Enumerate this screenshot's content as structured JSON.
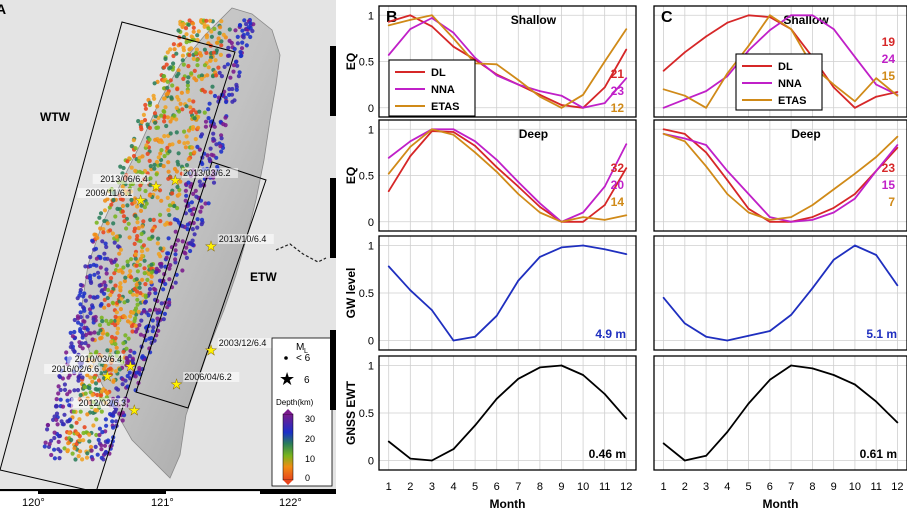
{
  "panel_a": {
    "letter": "A",
    "regions": [
      "WTW",
      "ETW"
    ],
    "lon_ticks": [
      "120°",
      "121°",
      "122°"
    ],
    "events": [
      {
        "label": "2013/06/6.4",
        "lon": 120.92,
        "lat": 23.87
      },
      {
        "label": "2013/03/6.2",
        "lon": 121.07,
        "lat": 23.9
      },
      {
        "label": "2009/11/6.1",
        "lon": 120.8,
        "lat": 23.8
      },
      {
        "label": "2013/10/6.4",
        "lon": 121.35,
        "lat": 23.57
      },
      {
        "label": "2003/12/6.4",
        "lon": 121.35,
        "lat": 23.05
      },
      {
        "label": "2010/03/6.4",
        "lon": 120.72,
        "lat": 22.97
      },
      {
        "label": "2006/04/6.2",
        "lon": 121.08,
        "lat": 22.88
      },
      {
        "label": "2016/02/6.6",
        "lon": 120.54,
        "lat": 22.92
      },
      {
        "label": "2012/02/6.3",
        "lon": 120.75,
        "lat": 22.75
      }
    ],
    "legend": {
      "ml_title": "M",
      "ml_sub": "L",
      "small_label": "< 6",
      "big_label": "6",
      "depth_title": "Depth(km)",
      "depth_ticks": [
        "30",
        "20",
        "10",
        "0"
      ]
    }
  },
  "chart_data": [
    {
      "type": "line",
      "panel": "B",
      "row": 1,
      "title": "Shallow",
      "ylabel": "EQ",
      "x": [
        1,
        2,
        3,
        4,
        5,
        6,
        7,
        8,
        9,
        10,
        11,
        12
      ],
      "ylim": [
        -0.1,
        1.1
      ],
      "yticks": [
        0,
        0.5,
        1
      ],
      "legend": "top-left",
      "series": [
        {
          "name": "DL",
          "color": "#d62728",
          "values": [
            0.93,
            1.0,
            0.88,
            0.66,
            0.52,
            0.36,
            0.25,
            0.14,
            0.03,
            0.0,
            0.22,
            0.63
          ],
          "annot": "21"
        },
        {
          "name": "NNA",
          "color": "#c020c8",
          "values": [
            0.57,
            0.85,
            0.97,
            0.81,
            0.54,
            0.35,
            0.25,
            0.18,
            0.13,
            0.0,
            0.05,
            0.32
          ],
          "annot": "23"
        },
        {
          "name": "ETAS",
          "color": "#d08a18",
          "values": [
            0.89,
            0.95,
            1.0,
            0.75,
            0.48,
            0.47,
            0.3,
            0.12,
            0.0,
            0.14,
            0.5,
            0.85
          ],
          "annot": "12"
        }
      ]
    },
    {
      "type": "line",
      "panel": "B",
      "row": 2,
      "title": "Deep",
      "ylabel": "EQ",
      "x": [
        1,
        2,
        3,
        4,
        5,
        6,
        7,
        8,
        9,
        10,
        11,
        12
      ],
      "ylim": [
        -0.1,
        1.1
      ],
      "yticks": [
        0,
        0.5,
        1
      ],
      "series": [
        {
          "name": "DL",
          "color": "#d62728",
          "values": [
            0.33,
            0.71,
            0.98,
            0.97,
            0.82,
            0.59,
            0.38,
            0.16,
            0.0,
            0.0,
            0.18,
            0.58
          ],
          "annot": "32"
        },
        {
          "name": "NNA",
          "color": "#c020c8",
          "values": [
            0.69,
            0.87,
            1.0,
            1.0,
            0.87,
            0.67,
            0.43,
            0.2,
            0.0,
            0.1,
            0.38,
            0.84
          ],
          "annot": "20"
        },
        {
          "name": "ETAS",
          "color": "#d08a18",
          "values": [
            0.52,
            0.81,
            1.0,
            0.94,
            0.75,
            0.54,
            0.3,
            0.1,
            0.0,
            0.05,
            0.02,
            0.07
          ],
          "annot": "14"
        }
      ]
    },
    {
      "type": "line",
      "panel": "B",
      "row": 3,
      "title": "",
      "ylabel": "GW level",
      "x": [
        1,
        2,
        3,
        4,
        5,
        6,
        7,
        8,
        9,
        10,
        11,
        12
      ],
      "ylim": [
        -0.1,
        1.1
      ],
      "yticks": [
        0,
        0.5,
        1
      ],
      "series": [
        {
          "name": "",
          "color": "#1f2fbf",
          "values": [
            0.78,
            0.53,
            0.32,
            0.0,
            0.04,
            0.26,
            0.63,
            0.88,
            0.98,
            1.0,
            0.96,
            0.91
          ],
          "annot": "4.9 m"
        }
      ]
    },
    {
      "type": "line",
      "panel": "B",
      "row": 4,
      "title": "",
      "ylabel": "GNSS EWT",
      "x": [
        1,
        2,
        3,
        4,
        5,
        6,
        7,
        8,
        9,
        10,
        11,
        12
      ],
      "ylim": [
        -0.1,
        1.1
      ],
      "yticks": [
        0,
        0.5,
        1
      ],
      "xlabel": "Month",
      "series": [
        {
          "name": "",
          "color": "#000000",
          "values": [
            0.2,
            0.02,
            0.0,
            0.12,
            0.37,
            0.65,
            0.86,
            0.98,
            1.0,
            0.9,
            0.7,
            0.44
          ],
          "annot": "0.46 m"
        }
      ]
    },
    {
      "type": "line",
      "panel": "C",
      "row": 1,
      "title": "Shallow",
      "ylabel": "",
      "x": [
        1,
        2,
        3,
        4,
        5,
        6,
        7,
        8,
        9,
        10,
        11,
        12
      ],
      "ylim": [
        -0.1,
        1.1
      ],
      "yticks": [
        0,
        0.5,
        1
      ],
      "legend": "top-left",
      "series": [
        {
          "name": "DL",
          "color": "#d62728",
          "values": [
            0.4,
            0.6,
            0.77,
            0.92,
            1.0,
            0.98,
            0.85,
            0.55,
            0.22,
            0.0,
            0.12,
            0.17
          ],
          "annot": "19"
        },
        {
          "name": "NNA",
          "color": "#c020c8",
          "values": [
            0.0,
            0.09,
            0.18,
            0.34,
            0.62,
            0.84,
            1.0,
            1.0,
            0.85,
            0.55,
            0.25,
            0.14
          ],
          "annot": "24"
        },
        {
          "name": "ETAS",
          "color": "#d08a18",
          "values": [
            0.2,
            0.13,
            0.0,
            0.37,
            0.67,
            1.0,
            0.85,
            0.45,
            0.25,
            0.07,
            0.32,
            0.13
          ],
          "annot": "15"
        }
      ]
    },
    {
      "type": "line",
      "panel": "C",
      "row": 2,
      "title": "Deep",
      "ylabel": "",
      "x": [
        1,
        2,
        3,
        4,
        5,
        6,
        7,
        8,
        9,
        10,
        11,
        12
      ],
      "ylim": [
        -0.1,
        1.1
      ],
      "yticks": [
        0,
        0.5,
        1
      ],
      "series": [
        {
          "name": "DL",
          "color": "#d62728",
          "values": [
            1.0,
            0.95,
            0.75,
            0.45,
            0.14,
            0.0,
            0.0,
            0.05,
            0.15,
            0.3,
            0.55,
            0.8
          ],
          "annot": "23"
        },
        {
          "name": "NNA",
          "color": "#c020c8",
          "values": [
            0.95,
            0.9,
            0.83,
            0.55,
            0.3,
            0.05,
            0.0,
            0.02,
            0.1,
            0.25,
            0.55,
            0.83
          ],
          "annot": "15"
        },
        {
          "name": "ETAS",
          "color": "#d08a18",
          "values": [
            0.95,
            0.87,
            0.6,
            0.3,
            0.1,
            0.02,
            0.05,
            0.18,
            0.35,
            0.52,
            0.7,
            0.92
          ],
          "annot": "7"
        }
      ]
    },
    {
      "type": "line",
      "panel": "C",
      "row": 3,
      "title": "",
      "ylabel": "",
      "x": [
        1,
        2,
        3,
        4,
        5,
        6,
        7,
        8,
        9,
        10,
        11,
        12
      ],
      "ylim": [
        -0.1,
        1.1
      ],
      "yticks": [
        0,
        0.5,
        1
      ],
      "series": [
        {
          "name": "",
          "color": "#1f2fbf",
          "values": [
            0.45,
            0.18,
            0.04,
            0.0,
            0.05,
            0.1,
            0.27,
            0.55,
            0.85,
            1.0,
            0.9,
            0.58
          ],
          "annot": "5.1 m"
        }
      ]
    },
    {
      "type": "line",
      "panel": "C",
      "row": 4,
      "title": "",
      "ylabel": "",
      "x": [
        1,
        2,
        3,
        4,
        5,
        6,
        7,
        8,
        9,
        10,
        11,
        12
      ],
      "ylim": [
        -0.1,
        1.1
      ],
      "yticks": [
        0,
        0.5,
        1
      ],
      "xlabel": "Month",
      "series": [
        {
          "name": "",
          "color": "#000000",
          "values": [
            0.18,
            0.0,
            0.05,
            0.3,
            0.6,
            0.85,
            1.0,
            0.97,
            0.9,
            0.8,
            0.62,
            0.4
          ],
          "annot": "0.61 m"
        }
      ]
    }
  ]
}
